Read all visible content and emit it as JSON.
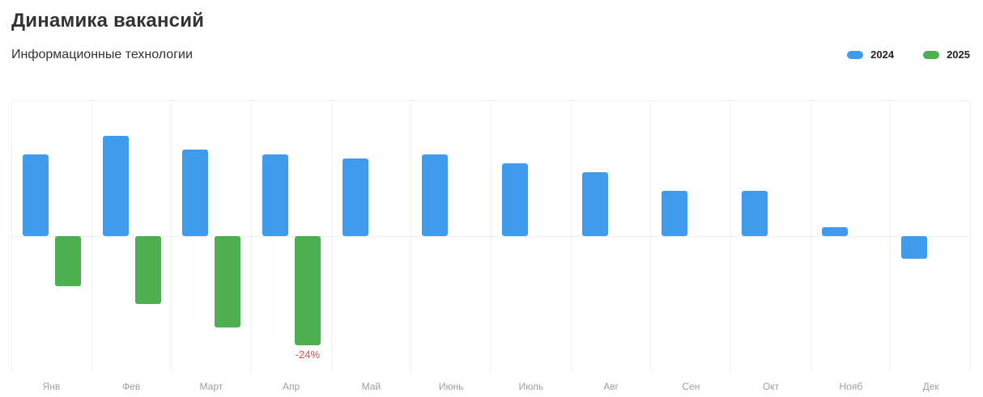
{
  "header": {
    "title": "Динамика вакансий",
    "subtitle": "Информационные технологии"
  },
  "legend": {
    "items": [
      {
        "label": "2024",
        "color": "#3f9cec"
      },
      {
        "label": "2025",
        "color": "#4caf50"
      }
    ]
  },
  "chart_data": {
    "type": "bar",
    "title": "Динамика вакансий",
    "subtitle": "Информационные технологии",
    "unit": "%",
    "categories": [
      "Янв",
      "Фев",
      "Март",
      "Апр",
      "Май",
      "Июнь",
      "Июль",
      "Авг",
      "Сен",
      "Окт",
      "Нояб",
      "Дек"
    ],
    "series": [
      {
        "name": "2024",
        "color": "#3f9cec",
        "values": [
          18,
          22,
          19,
          18,
          17,
          18,
          16,
          14,
          10,
          10,
          2,
          -5
        ]
      },
      {
        "name": "2025",
        "color": "#4caf50",
        "values": [
          -11,
          -15,
          -20,
          -24,
          null,
          null,
          null,
          null,
          null,
          null,
          null,
          null
        ],
        "point_labels": {
          "3": "-24%"
        }
      }
    ],
    "point_label_color": "#e04b4b",
    "baseline": 0,
    "ylim": [
      -29.7,
      29.7
    ],
    "grid": "vertical-columns",
    "legend_position": "top-right",
    "axis_label_color": "#9e9e9e",
    "grid_color": "#efefef"
  }
}
